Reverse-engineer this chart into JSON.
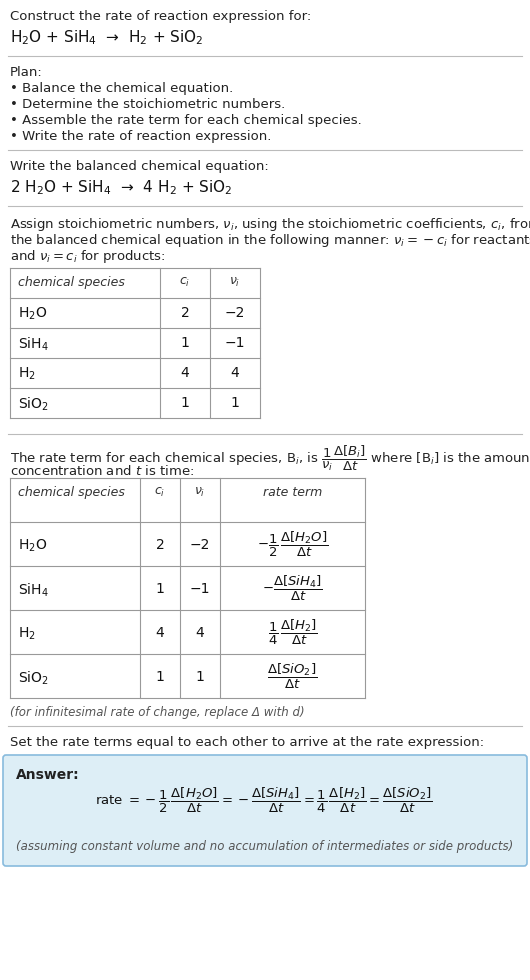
{
  "bg_color": "#ffffff",
  "text_color": "#000000",
  "answer_bg": "#ddeef6",
  "answer_border": "#88bbdd",
  "title": "Construct the rate of reaction expression for:",
  "reaction_unbalanced": "H$_2$O + SiH$_4$  →  H$_2$ + SiO$_2$",
  "plan_header": "Plan:",
  "plan_items": [
    "• Balance the chemical equation.",
    "• Determine the stoichiometric numbers.",
    "• Assemble the rate term for each chemical species.",
    "• Write the rate of reaction expression."
  ],
  "balanced_header": "Write the balanced chemical equation:",
  "reaction_balanced": "2 H$_2$O + SiH$_4$  →  4 H$_2$ + SiO$_2$",
  "stoich_intro": "Assign stoichiometric numbers, $\\nu_i$, using the stoichiometric coefficients, $c_i$, from the balanced chemical equation in the following manner: $\\nu_i = -c_i$ for reactants and $\\nu_i = c_i$ for products:",
  "table1_headers": [
    "chemical species",
    "$c_i$",
    "$\\nu_i$"
  ],
  "table1_data": [
    [
      "H$_2$O",
      "2",
      "−2"
    ],
    [
      "SiH$_4$",
      "1",
      "−1"
    ],
    [
      "H$_2$",
      "4",
      "4"
    ],
    [
      "SiO$_2$",
      "1",
      "1"
    ]
  ],
  "rate_intro_1": "The rate term for each chemical species, B$_i$, is $\\dfrac{1}{\\nu_i}\\dfrac{\\Delta[B_i]}{\\Delta t}$ where [B$_i$] is the amount",
  "rate_intro_2": "concentration and $t$ is time:",
  "table2_headers": [
    "chemical species",
    "$c_i$",
    "$\\nu_i$",
    "rate term"
  ],
  "table2_data": [
    [
      "H$_2$O",
      "2",
      "−2",
      "$-\\dfrac{1}{2}\\,\\dfrac{\\Delta[H_2O]}{\\Delta t}$"
    ],
    [
      "SiH$_4$",
      "1",
      "−1",
      "$-\\dfrac{\\Delta[SiH_4]}{\\Delta t}$"
    ],
    [
      "H$_2$",
      "4",
      "4",
      "$\\dfrac{1}{4}\\,\\dfrac{\\Delta[H_2]}{\\Delta t}$"
    ],
    [
      "SiO$_2$",
      "1",
      "1",
      "$\\dfrac{\\Delta[SiO_2]}{\\Delta t}$"
    ]
  ],
  "infinitesimal_note": "(for infinitesimal rate of change, replace Δ with d)",
  "set_equal_header": "Set the rate terms equal to each other to arrive at the rate expression:",
  "answer_label": "Answer:",
  "rate_expr": "rate $= -\\dfrac{1}{2}\\,\\dfrac{\\Delta[H_2O]}{\\Delta t} = -\\dfrac{\\Delta[SiH_4]}{\\Delta t} = \\dfrac{1}{4}\\,\\dfrac{\\Delta[H_2]}{\\Delta t} = \\dfrac{\\Delta[SiO_2]}{\\Delta t}$",
  "answer_note": "(assuming constant volume and no accumulation of intermediates or side products)"
}
